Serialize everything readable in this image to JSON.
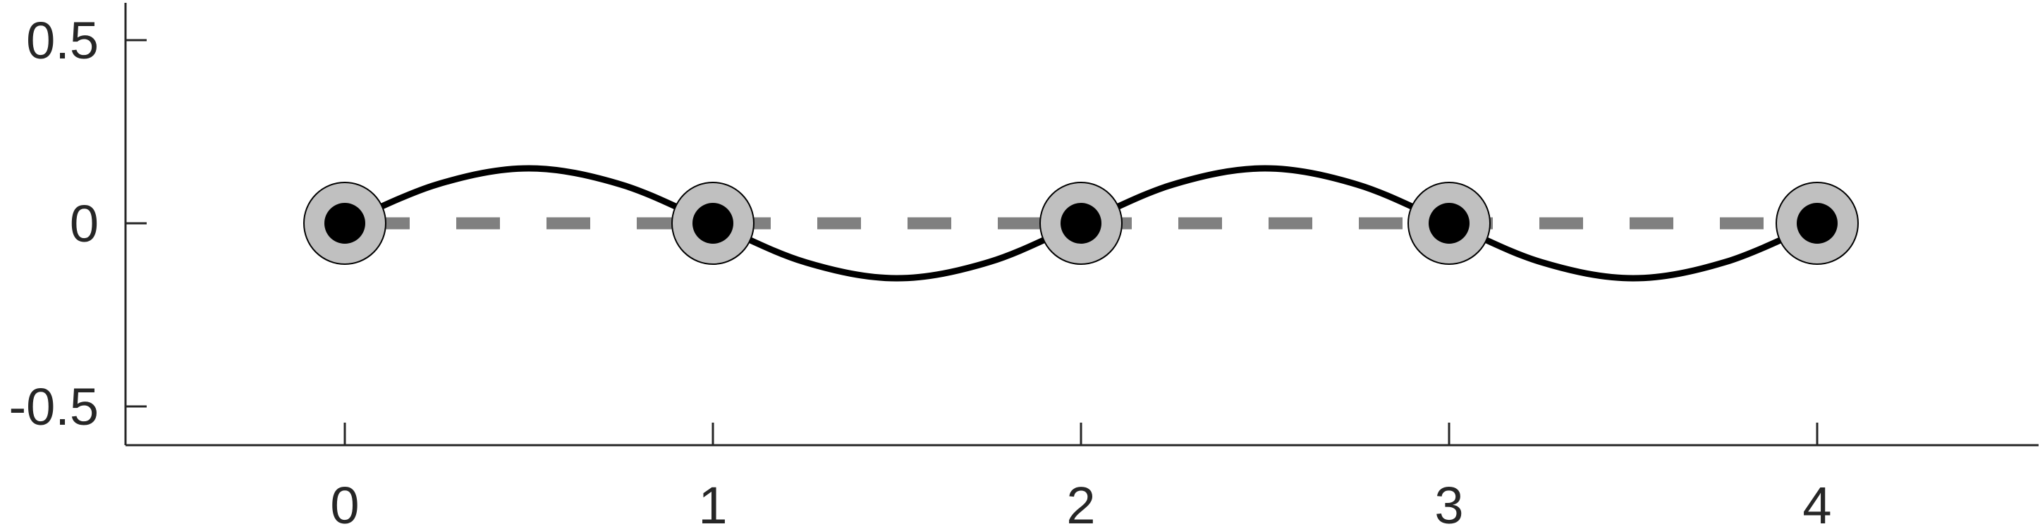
{
  "chart_data": {
    "type": "line",
    "title": "",
    "xlabel": "",
    "ylabel": "",
    "xlim": [
      -0.6,
      4.6
    ],
    "ylim": [
      -0.6,
      0.6
    ],
    "x_ticks": [
      0,
      1,
      2,
      3,
      4
    ],
    "x_tick_labels": [
      "0",
      "1",
      "2",
      "3",
      "4"
    ],
    "y_ticks": [
      -0.5,
      0,
      0.5
    ],
    "y_tick_labels": [
      "-0.5",
      "0",
      "0.5"
    ],
    "grid": false,
    "legend": "none",
    "series": [
      {
        "style": "dashed",
        "color": "#808080",
        "x": [
          0,
          4
        ],
        "y": [
          0,
          0
        ]
      },
      {
        "style": "solid",
        "color": "#000000",
        "function": "0.15*sin(pi*x)",
        "x": [
          0,
          0.25,
          0.5,
          0.75,
          1,
          1.25,
          1.5,
          1.75,
          2,
          2.25,
          2.5,
          2.75,
          3,
          3.25,
          3.5,
          3.75,
          4
        ],
        "y": [
          0,
          0.106,
          0.15,
          0.106,
          0,
          -0.106,
          -0.15,
          -0.106,
          0,
          0.106,
          0.15,
          0.106,
          0,
          -0.106,
          -0.15,
          -0.106,
          0
        ]
      }
    ],
    "markers": {
      "outer_fill": "#c0c0c0",
      "outer_stroke": "#000000",
      "inner_fill": "#000000",
      "points": [
        {
          "x": 0,
          "y": 0
        },
        {
          "x": 1,
          "y": 0
        },
        {
          "x": 2,
          "y": 0
        },
        {
          "x": 3,
          "y": 0
        },
        {
          "x": 4,
          "y": 0
        }
      ]
    }
  }
}
